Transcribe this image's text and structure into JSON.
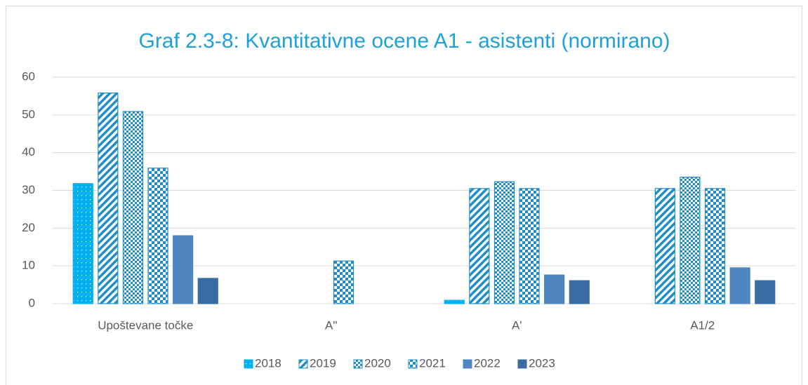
{
  "chart_data": {
    "type": "bar",
    "title": "Graf 2.3-8: Kvantitativne ocene A1 - asistenti (normirano)",
    "categories": [
      "Upoštevane točke",
      "A''",
      "A'",
      "A1/2"
    ],
    "series": [
      {
        "name": "2018",
        "color": "#00b0f0",
        "pattern": "dots",
        "values": [
          31.8,
          0,
          0.9,
          0
        ]
      },
      {
        "name": "2019",
        "color": "#1f8dc7",
        "pattern": "diagonal",
        "values": [
          55.8,
          0,
          30.5,
          30.5
        ]
      },
      {
        "name": "2020",
        "color": "#1f8dc7",
        "pattern": "small-checker",
        "values": [
          50.9,
          0,
          32.3,
          33.5
        ]
      },
      {
        "name": "2021",
        "color": "#1f8dc7",
        "pattern": "checker",
        "values": [
          35.9,
          11.3,
          30.5,
          30.5
        ]
      },
      {
        "name": "2022",
        "color": "#4f86c0",
        "values": [
          18.0,
          0,
          7.6,
          9.5
        ]
      },
      {
        "name": "2023",
        "color": "#3a6ca3",
        "values": [
          6.7,
          0,
          6.1,
          6.1
        ]
      }
    ],
    "ylim": [
      0,
      60
    ],
    "yticks": [
      0,
      10,
      20,
      30,
      40,
      50,
      60
    ],
    "grid": true,
    "legend": "bottom"
  }
}
